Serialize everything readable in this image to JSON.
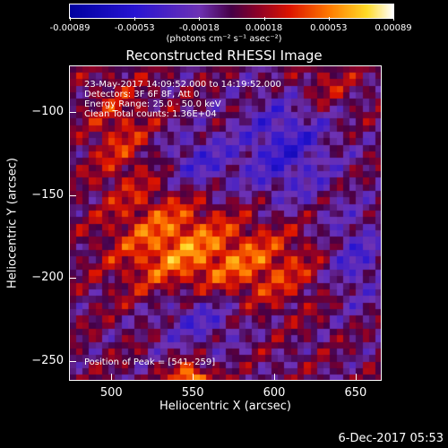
{
  "chart_data": {
    "type": "heatmap",
    "title": "Reconstructed RHESSI Image",
    "xlabel": "Heliocentric X (arcsec)",
    "ylabel": "Heliocentric Y (arcsec)",
    "xlim": [
      474,
      666
    ],
    "ylim": [
      -262,
      -72
    ],
    "x_ticks": [
      500,
      550,
      600,
      650
    ],
    "y_ticks": [
      -100,
      -150,
      -200,
      -250
    ],
    "colorbar": {
      "ticks": [
        "-0.00089",
        "-0.00053",
        "-0.00018",
        "0.00018",
        "0.00053",
        "0.00089"
      ],
      "units": "(photons cm⁻² s⁻¹ asec⁻²)",
      "range": [
        -0.00089,
        0.00089
      ]
    },
    "annotations": [
      "23-May-2017 14:09:52.000 to 14:19:52.000",
      "Detectors: 3F 6F 8F, Att 0",
      "Energy Range: 25.0 - 50.0 keV",
      "Clean    Total counts: 1.36E+04"
    ],
    "peak_label": "Position of Peak = [541,-259]",
    "peak": [
      541,
      -259
    ]
  },
  "footer": "6-Dec-2017 05:53"
}
